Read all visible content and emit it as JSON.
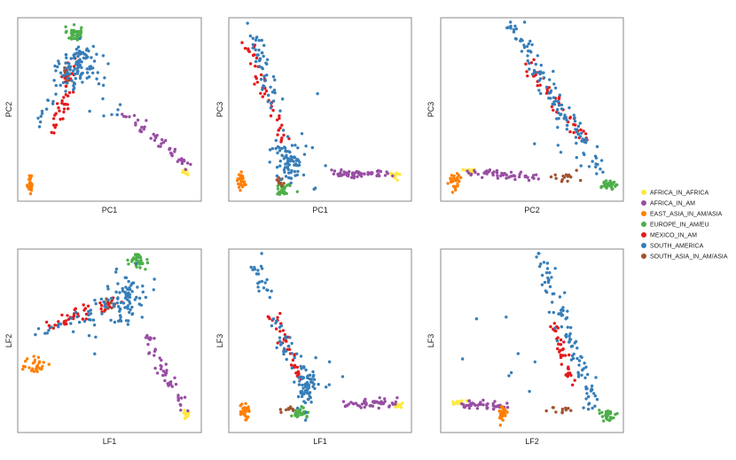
{
  "chart_data": {
    "type": "scatter",
    "panels": [
      {
        "xlabel": "PC1",
        "ylabel": "PC2"
      },
      {
        "xlabel": "PC1",
        "ylabel": "PC3"
      },
      {
        "xlabel": "PC2",
        "ylabel": "PC3"
      },
      {
        "xlabel": "LF1",
        "ylabel": "LF2"
      },
      {
        "xlabel": "LF1",
        "ylabel": "LF3"
      },
      {
        "xlabel": "LF2",
        "ylabel": "LF3"
      }
    ],
    "legend": {
      "position": "right",
      "entries": [
        {
          "label": "AFRICA_IN_AFRICA",
          "color": "#ffe93a"
        },
        {
          "label": "AFRICA_IN_AM",
          "color": "#984ea3"
        },
        {
          "label": "EAST_ASIA_IN_AM/ASIA",
          "color": "#ff7f00"
        },
        {
          "label": "EUROPE_IN_AM/EU",
          "color": "#4daf4a"
        },
        {
          "label": "MEXICO_IN_AM",
          "color": "#e41a1c"
        },
        {
          "label": "SOUTH_AMERICA",
          "color": "#377eb8"
        },
        {
          "label": "SOUTH_ASIA_IN_AM/ASIA",
          "color": "#a0522d"
        }
      ]
    },
    "axis_range": [
      0,
      1
    ],
    "ticks": "none",
    "grid": false,
    "clusters": [
      [
        {
          "g": 2,
          "cx": 0.05,
          "cy": 0.08,
          "sx": 0.008,
          "sy": 0.03,
          "n": 30
        },
        {
          "g": 3,
          "cx": 0.3,
          "cy": 0.93,
          "sx": 0.02,
          "sy": 0.02,
          "n": 40
        },
        {
          "g": 0,
          "cx": 0.93,
          "cy": 0.15,
          "sx": 0.012,
          "sy": 0.015,
          "n": 10
        },
        {
          "g": 6,
          "cx": 0.26,
          "cy": 0.69,
          "sx": 0.012,
          "sy": 0.035,
          "n": 15
        },
        {
          "line": [
            0.95,
            0.18,
            0.58,
            0.48
          ],
          "g": 1,
          "n": 48,
          "jx": 0.018,
          "jy": 0.015
        },
        {
          "line": [
            0.18,
            0.35,
            0.3,
            0.82
          ],
          "g": 4,
          "n": 40,
          "jx": 0.02,
          "jy": 0.02
        },
        {
          "g": 5,
          "cx": 0.34,
          "cy": 0.74,
          "sx": 0.06,
          "sy": 0.06,
          "n": 90
        },
        {
          "line": [
            0.1,
            0.4,
            0.34,
            0.84
          ],
          "g": 5,
          "n": 30,
          "jx": 0.03,
          "jy": 0.02
        },
        {
          "g": 5,
          "cx": 0.48,
          "cy": 0.5,
          "sx": 0.06,
          "sy": 0.05,
          "n": 7
        }
      ],
      [
        {
          "g": 2,
          "cx": 0.05,
          "cy": 0.09,
          "sx": 0.01,
          "sy": 0.03,
          "n": 30
        },
        {
          "g": 3,
          "cx": 0.3,
          "cy": 0.05,
          "sx": 0.025,
          "sy": 0.02,
          "n": 30
        },
        {
          "g": 6,
          "cx": 0.27,
          "cy": 0.1,
          "sx": 0.012,
          "sy": 0.02,
          "n": 10
        },
        {
          "g": 0,
          "cx": 0.93,
          "cy": 0.13,
          "sx": 0.015,
          "sy": 0.012,
          "n": 12
        },
        {
          "line": [
            0.58,
            0.13,
            0.9,
            0.14
          ],
          "g": 1,
          "n": 60,
          "jx": 0.02,
          "jy": 0.012
        },
        {
          "line": [
            0.1,
            0.88,
            0.28,
            0.33
          ],
          "g": 4,
          "n": 45,
          "jx": 0.02,
          "jy": 0.015
        },
        {
          "line": [
            0.1,
            0.98,
            0.25,
            0.5
          ],
          "g": 5,
          "n": 50,
          "jx": 0.025,
          "jy": 0.02
        },
        {
          "g": 5,
          "cx": 0.32,
          "cy": 0.22,
          "sx": 0.04,
          "sy": 0.07,
          "n": 80
        },
        {
          "g": 5,
          "cx": 0.5,
          "cy": 0.2,
          "sx": 0.06,
          "sy": 0.1,
          "n": 6
        }
      ],
      [
        {
          "g": 2,
          "cx": 0.06,
          "cy": 0.09,
          "sx": 0.015,
          "sy": 0.025,
          "n": 30
        },
        {
          "g": 0,
          "cx": 0.14,
          "cy": 0.15,
          "sx": 0.015,
          "sy": 0.01,
          "n": 10
        },
        {
          "line": [
            0.15,
            0.14,
            0.56,
            0.12
          ],
          "g": 1,
          "n": 50,
          "jx": 0.02,
          "jy": 0.012
        },
        {
          "g": 6,
          "cx": 0.7,
          "cy": 0.11,
          "sx": 0.04,
          "sy": 0.012,
          "n": 15
        },
        {
          "g": 3,
          "cx": 0.94,
          "cy": 0.07,
          "sx": 0.02,
          "sy": 0.015,
          "n": 30
        },
        {
          "line": [
            0.45,
            0.78,
            0.8,
            0.32
          ],
          "g": 4,
          "n": 45,
          "jx": 0.02,
          "jy": 0.02
        },
        {
          "line": [
            0.38,
            0.98,
            0.9,
            0.12
          ],
          "g": 5,
          "n": 110,
          "jx": 0.03,
          "jy": 0.025
        },
        {
          "g": 5,
          "cx": 0.58,
          "cy": 0.4,
          "sx": 0.1,
          "sy": 0.15,
          "n": 10
        }
      ],
      [
        {
          "g": 2,
          "cx": 0.09,
          "cy": 0.37,
          "sx": 0.03,
          "sy": 0.02,
          "n": 30
        },
        {
          "g": 3,
          "cx": 0.66,
          "cy": 0.95,
          "sx": 0.025,
          "sy": 0.02,
          "n": 40
        },
        {
          "g": 0,
          "cx": 0.93,
          "cy": 0.08,
          "sx": 0.015,
          "sy": 0.02,
          "n": 12
        },
        {
          "g": 6,
          "cx": 0.5,
          "cy": 0.7,
          "sx": 0.02,
          "sy": 0.02,
          "n": 12
        },
        {
          "line": [
            0.93,
            0.1,
            0.7,
            0.55
          ],
          "g": 1,
          "n": 50,
          "jx": 0.02,
          "jy": 0.02
        },
        {
          "line": [
            0.15,
            0.58,
            0.55,
            0.73
          ],
          "g": 4,
          "n": 45,
          "jx": 0.02,
          "jy": 0.02
        },
        {
          "g": 5,
          "cx": 0.6,
          "cy": 0.75,
          "sx": 0.06,
          "sy": 0.08,
          "n": 80
        },
        {
          "line": [
            0.1,
            0.55,
            0.5,
            0.7
          ],
          "g": 5,
          "n": 25,
          "jx": 0.03,
          "jy": 0.03
        },
        {
          "g": 5,
          "cx": 0.4,
          "cy": 0.55,
          "sx": 0.08,
          "sy": 0.07,
          "n": 8
        }
      ],
      [
        {
          "g": 2,
          "cx": 0.07,
          "cy": 0.1,
          "sx": 0.015,
          "sy": 0.025,
          "n": 30
        },
        {
          "g": 3,
          "cx": 0.39,
          "cy": 0.09,
          "sx": 0.025,
          "sy": 0.015,
          "n": 30
        },
        {
          "g": 6,
          "cx": 0.32,
          "cy": 0.11,
          "sx": 0.02,
          "sy": 0.01,
          "n": 10
        },
        {
          "g": 0,
          "cx": 0.95,
          "cy": 0.14,
          "sx": 0.012,
          "sy": 0.01,
          "n": 10
        },
        {
          "line": [
            0.62,
            0.14,
            0.9,
            0.15
          ],
          "g": 1,
          "n": 50,
          "jx": 0.02,
          "jy": 0.012
        },
        {
          "line": [
            0.23,
            0.68,
            0.38,
            0.28
          ],
          "g": 4,
          "n": 40,
          "jx": 0.02,
          "jy": 0.02
        },
        {
          "line": [
            0.12,
            0.97,
            0.35,
            0.35
          ],
          "g": 5,
          "n": 50,
          "jx": 0.025,
          "jy": 0.02
        },
        {
          "g": 5,
          "cx": 0.42,
          "cy": 0.24,
          "sx": 0.03,
          "sy": 0.07,
          "n": 70
        },
        {
          "g": 5,
          "cx": 0.5,
          "cy": 0.3,
          "sx": 0.05,
          "sy": 0.1,
          "n": 6
        }
      ],
      [
        {
          "g": 0,
          "cx": 0.08,
          "cy": 0.15,
          "sx": 0.025,
          "sy": 0.008,
          "n": 12
        },
        {
          "line": [
            0.12,
            0.14,
            0.35,
            0.13
          ],
          "g": 1,
          "n": 45,
          "jx": 0.02,
          "jy": 0.012
        },
        {
          "g": 2,
          "cx": 0.33,
          "cy": 0.09,
          "sx": 0.01,
          "sy": 0.03,
          "n": 30
        },
        {
          "g": 6,
          "cx": 0.68,
          "cy": 0.11,
          "sx": 0.04,
          "sy": 0.012,
          "n": 12
        },
        {
          "g": 3,
          "cx": 0.93,
          "cy": 0.08,
          "sx": 0.025,
          "sy": 0.015,
          "n": 30
        },
        {
          "line": [
            0.62,
            0.6,
            0.72,
            0.28
          ],
          "g": 4,
          "n": 40,
          "jx": 0.015,
          "jy": 0.02
        },
        {
          "line": [
            0.55,
            0.98,
            0.85,
            0.12
          ],
          "g": 5,
          "n": 100,
          "jx": 0.025,
          "jy": 0.02
        },
        {
          "g": 5,
          "cx": 0.4,
          "cy": 0.4,
          "sx": 0.1,
          "sy": 0.12,
          "n": 8
        }
      ]
    ]
  }
}
